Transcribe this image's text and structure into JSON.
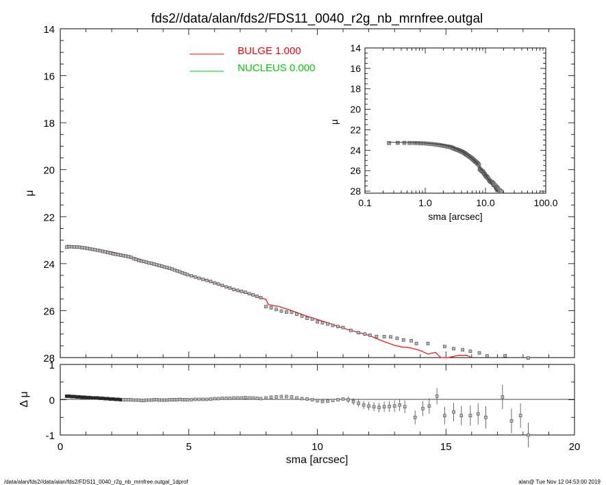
{
  "title": "fds2//data/alan/fds2/FDS11_0040_r2g_nb_mrnfree.outgal",
  "footer_left": "/data/alan/fds2//data/alan/fds2/FDS11_0040_r2g_nb_mrnfree.outgal_1dprof",
  "footer_right": "alan@  Tue Nov 12 04:53:00 2019",
  "legend": [
    {
      "label": "BULGE  1.000",
      "color": "#ff0000"
    },
    {
      "label": "NUCLEUS  0.000",
      "color": "#00cc00"
    }
  ],
  "chart_data": [
    {
      "type": "scatter",
      "panel": "main",
      "xlabel": "sma [arcsec]",
      "ylabel": "μ",
      "xlim": [
        0,
        20
      ],
      "ylim": [
        28,
        14
      ],
      "xticks": [
        "0",
        "5",
        "10",
        "15",
        "20"
      ],
      "yticks": [
        "14",
        "16",
        "18",
        "20",
        "22",
        "24",
        "26",
        "28"
      ],
      "observed": [
        [
          0.25,
          23.3
        ],
        [
          0.35,
          23.28
        ],
        [
          0.45,
          23.28
        ],
        [
          0.55,
          23.29
        ],
        [
          0.65,
          23.29
        ],
        [
          0.75,
          23.3
        ],
        [
          0.85,
          23.32
        ],
        [
          0.95,
          23.33
        ],
        [
          1.05,
          23.35
        ],
        [
          1.15,
          23.37
        ],
        [
          1.25,
          23.39
        ],
        [
          1.35,
          23.41
        ],
        [
          1.45,
          23.43
        ],
        [
          1.55,
          23.45
        ],
        [
          1.65,
          23.48
        ],
        [
          1.75,
          23.5
        ],
        [
          1.85,
          23.53
        ],
        [
          1.95,
          23.55
        ],
        [
          2.05,
          23.58
        ],
        [
          2.15,
          23.6
        ],
        [
          2.25,
          23.62
        ],
        [
          2.35,
          23.64
        ],
        [
          2.45,
          23.66
        ],
        [
          2.55,
          23.68
        ],
        [
          2.65,
          23.7
        ],
        [
          2.75,
          23.73
        ],
        [
          2.85,
          23.78
        ],
        [
          2.95,
          23.82
        ],
        [
          3.05,
          23.86
        ],
        [
          3.15,
          23.89
        ],
        [
          3.25,
          23.91
        ],
        [
          3.35,
          23.94
        ],
        [
          3.45,
          23.97
        ],
        [
          3.55,
          23.99
        ],
        [
          3.65,
          24.02
        ],
        [
          3.75,
          24.05
        ],
        [
          3.85,
          24.08
        ],
        [
          3.95,
          24.11
        ],
        [
          4.05,
          24.14
        ],
        [
          4.15,
          24.17
        ],
        [
          4.25,
          24.2
        ],
        [
          4.35,
          24.23
        ],
        [
          4.45,
          24.27
        ],
        [
          4.55,
          24.31
        ],
        [
          4.65,
          24.35
        ],
        [
          4.75,
          24.39
        ],
        [
          4.85,
          24.43
        ],
        [
          4.95,
          24.47
        ],
        [
          5.1,
          24.52
        ],
        [
          5.25,
          24.57
        ],
        [
          5.4,
          24.62
        ],
        [
          5.55,
          24.67
        ],
        [
          5.7,
          24.71
        ],
        [
          5.85,
          24.76
        ],
        [
          6.0,
          24.82
        ],
        [
          6.15,
          24.87
        ],
        [
          6.3,
          24.93
        ],
        [
          6.45,
          24.99
        ],
        [
          6.6,
          25.04
        ],
        [
          6.75,
          25.1
        ],
        [
          6.9,
          25.14
        ],
        [
          7.05,
          25.18
        ],
        [
          7.2,
          25.22
        ],
        [
          7.35,
          25.28
        ],
        [
          7.5,
          25.33
        ],
        [
          7.65,
          25.39
        ],
        [
          7.8,
          25.45
        ],
        [
          8.0,
          25.83
        ],
        [
          8.2,
          25.88
        ],
        [
          8.4,
          25.95
        ],
        [
          8.6,
          26.02
        ],
        [
          8.8,
          26.06
        ],
        [
          9.0,
          26.07
        ],
        [
          9.2,
          26.15
        ],
        [
          9.4,
          26.23
        ],
        [
          9.6,
          26.32
        ],
        [
          9.8,
          26.36
        ],
        [
          10.0,
          26.48
        ],
        [
          10.2,
          26.52
        ],
        [
          10.4,
          26.57
        ],
        [
          10.6,
          26.63
        ],
        [
          10.8,
          26.68
        ],
        [
          11.0,
          26.72
        ],
        [
          11.3,
          26.84
        ],
        [
          11.6,
          26.94
        ],
        [
          11.85,
          27.0
        ],
        [
          12.05,
          27.05
        ],
        [
          12.3,
          27.1
        ],
        [
          12.6,
          27.11
        ],
        [
          12.85,
          27.12
        ],
        [
          13.1,
          27.18
        ],
        [
          13.35,
          27.25
        ],
        [
          13.65,
          27.28
        ],
        [
          13.85,
          27.4
        ],
        [
          14.3,
          27.4
        ],
        [
          14.95,
          27.53
        ],
        [
          15.3,
          27.62
        ],
        [
          15.65,
          27.67
        ],
        [
          15.95,
          27.73
        ],
        [
          16.3,
          27.8
        ],
        [
          16.6,
          27.93
        ],
        [
          17.3,
          27.92
        ],
        [
          18.2,
          28.02
        ]
      ],
      "model_bulge": [
        [
          0.25,
          23.22
        ],
        [
          0.5,
          23.24
        ],
        [
          1.0,
          23.3
        ],
        [
          1.5,
          23.4
        ],
        [
          2.0,
          23.5
        ],
        [
          2.5,
          23.62
        ],
        [
          3.0,
          23.78
        ],
        [
          3.5,
          23.95
        ],
        [
          4.0,
          24.1
        ],
        [
          4.5,
          24.28
        ],
        [
          5.0,
          24.48
        ],
        [
          5.5,
          24.65
        ],
        [
          6.0,
          24.82
        ],
        [
          6.5,
          25.0
        ],
        [
          7.0,
          25.18
        ],
        [
          7.5,
          25.35
        ],
        [
          8.0,
          25.52
        ],
        [
          8.1,
          25.75
        ],
        [
          8.5,
          25.82
        ],
        [
          9.0,
          26.0
        ],
        [
          9.5,
          26.2
        ],
        [
          10.0,
          26.38
        ],
        [
          10.5,
          26.55
        ],
        [
          11.0,
          26.75
        ],
        [
          11.5,
          26.9
        ],
        [
          12.0,
          27.05
        ],
        [
          12.5,
          27.28
        ],
        [
          13.0,
          27.48
        ],
        [
          13.3,
          27.55
        ],
        [
          13.6,
          27.58
        ],
        [
          14.0,
          27.7
        ],
        [
          14.3,
          27.85
        ],
        [
          14.6,
          27.78
        ],
        [
          14.8,
          28.0
        ],
        [
          15.1,
          28.05
        ],
        [
          15.5,
          27.9
        ],
        [
          15.8,
          27.9
        ],
        [
          16.0,
          28.05
        ]
      ]
    },
    {
      "type": "scatter",
      "panel": "residual",
      "xlabel": "sma [arcsec]",
      "ylabel": "Δ μ",
      "xlim": [
        0,
        20
      ],
      "ylim": [
        -1,
        1
      ],
      "yticks": [
        "-1",
        "0",
        "1"
      ],
      "residual": [
        [
          0.25,
          0.1
        ],
        [
          0.35,
          0.1
        ],
        [
          0.45,
          0.09
        ],
        [
          0.55,
          0.09
        ],
        [
          0.65,
          0.08
        ],
        [
          0.75,
          0.08
        ],
        [
          0.85,
          0.07
        ],
        [
          0.95,
          0.07
        ],
        [
          1.05,
          0.06
        ],
        [
          1.15,
          0.06
        ],
        [
          1.25,
          0.05
        ],
        [
          1.35,
          0.05
        ],
        [
          1.45,
          0.05
        ],
        [
          1.55,
          0.04
        ],
        [
          1.65,
          0.04
        ],
        [
          1.75,
          0.03
        ],
        [
          1.85,
          0.03
        ],
        [
          1.95,
          0.02
        ],
        [
          2.05,
          0.02
        ],
        [
          2.15,
          0.01
        ],
        [
          2.25,
          0.01
        ],
        [
          2.35,
          0.0
        ],
        [
          2.45,
          0.0
        ],
        [
          2.55,
          0.0
        ],
        [
          2.65,
          0.0
        ],
        [
          2.75,
          0.0
        ],
        [
          2.85,
          -0.01
        ],
        [
          2.95,
          -0.01
        ],
        [
          3.05,
          -0.01
        ],
        [
          3.15,
          -0.02
        ],
        [
          3.25,
          -0.02
        ],
        [
          3.35,
          -0.01
        ],
        [
          3.45,
          -0.01
        ],
        [
          3.55,
          -0.01
        ],
        [
          3.65,
          0.0
        ],
        [
          3.75,
          0.0
        ],
        [
          3.85,
          -0.01
        ],
        [
          3.95,
          -0.01
        ],
        [
          4.05,
          -0.01
        ],
        [
          4.15,
          -0.01
        ],
        [
          4.25,
          0.0
        ],
        [
          4.35,
          0.0
        ],
        [
          4.45,
          0.0
        ],
        [
          4.55,
          0.0
        ],
        [
          4.65,
          0.01
        ],
        [
          4.75,
          0.0
        ],
        [
          4.85,
          0.0
        ],
        [
          4.95,
          0.0
        ],
        [
          5.1,
          0.0
        ],
        [
          5.25,
          0.01
        ],
        [
          5.4,
          0.01
        ],
        [
          5.55,
          0.01
        ],
        [
          5.7,
          0.01
        ],
        [
          5.85,
          0.02
        ],
        [
          6.0,
          0.03
        ],
        [
          6.15,
          0.03
        ],
        [
          6.3,
          0.04
        ],
        [
          6.45,
          0.04
        ],
        [
          6.6,
          0.04
        ],
        [
          6.75,
          0.05
        ],
        [
          6.9,
          0.05
        ],
        [
          7.05,
          0.05
        ],
        [
          7.2,
          0.06
        ],
        [
          7.35,
          0.05
        ],
        [
          7.5,
          0.05
        ],
        [
          7.65,
          0.04
        ],
        [
          7.8,
          0.03
        ],
        [
          8.0,
          0.05
        ],
        [
          8.2,
          0.07
        ],
        [
          8.4,
          0.08
        ],
        [
          8.6,
          0.09
        ],
        [
          8.8,
          0.09
        ],
        [
          9.0,
          0.08
        ],
        [
          9.2,
          0.05
        ],
        [
          9.4,
          0.03
        ],
        [
          9.6,
          0.02
        ],
        [
          9.8,
          0.0
        ],
        [
          10.0,
          -0.03
        ],
        [
          10.2,
          -0.05
        ],
        [
          10.4,
          -0.04
        ],
        [
          10.6,
          -0.02
        ],
        [
          10.8,
          0.0
        ],
        [
          11.0,
          0.02
        ],
        [
          11.2,
          0.0
        ],
        [
          11.4,
          -0.05
        ],
        [
          11.6,
          -0.1
        ],
        [
          11.8,
          -0.15
        ],
        [
          12.0,
          -0.18
        ],
        [
          12.2,
          -0.2
        ],
        [
          12.4,
          -0.22
        ],
        [
          12.6,
          -0.2
        ],
        [
          12.8,
          -0.19
        ],
        [
          13.0,
          -0.18
        ],
        [
          13.2,
          -0.15
        ],
        [
          13.4,
          -0.2
        ],
        [
          13.8,
          -0.5
        ],
        [
          14.1,
          -0.25
        ],
        [
          14.35,
          -0.18
        ],
        [
          14.65,
          0.1
        ],
        [
          14.95,
          -0.45
        ],
        [
          15.3,
          -0.35
        ],
        [
          15.6,
          -0.45
        ],
        [
          15.95,
          -0.45
        ],
        [
          16.25,
          -0.4
        ],
        [
          16.55,
          -0.5
        ],
        [
          17.2,
          0.08
        ],
        [
          17.55,
          -0.6
        ],
        [
          17.9,
          -0.45
        ],
        [
          18.2,
          -1.0
        ]
      ]
    },
    {
      "type": "scatter",
      "panel": "inset",
      "xlabel": "sma [arcsec]",
      "ylabel": "μ",
      "xscale": "log",
      "xlim": [
        0.1,
        100
      ],
      "ylim": [
        28.2,
        14
      ],
      "xticks": [
        "0.1",
        "1.0",
        "10.0",
        "100.0"
      ],
      "yticks": [
        "14",
        "16",
        "18",
        "20",
        "22",
        "24",
        "26",
        "28"
      ]
    }
  ]
}
